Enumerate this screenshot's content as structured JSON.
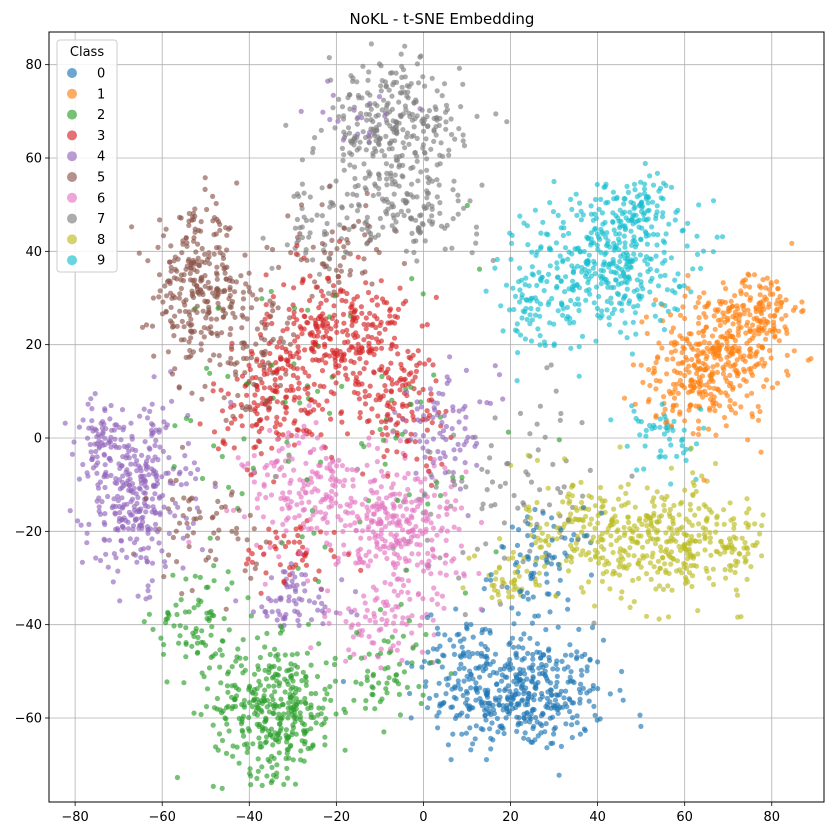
{
  "chart_data": {
    "type": "scatter",
    "title": "NoKL - t-SNE Embedding",
    "xlabel": "",
    "ylabel": "",
    "xlim": [
      -86,
      92
    ],
    "ylim": [
      -78,
      87
    ],
    "xticks": [
      -80,
      -60,
      -40,
      -20,
      0,
      20,
      40,
      60,
      80
    ],
    "yticks": [
      -60,
      -40,
      -20,
      0,
      20,
      40,
      60,
      80
    ],
    "grid": true,
    "legend": {
      "title": "Class",
      "position": "upper-left"
    },
    "series": [
      {
        "name": "0",
        "color": "#1f77b4",
        "clusters": [
          {
            "cx": 22,
            "cy": -55,
            "sx": 10,
            "sy": 6,
            "n": 420
          },
          {
            "cx": 28,
            "cy": -28,
            "sx": 6,
            "sy": 6,
            "n": 80
          },
          {
            "cx": 10,
            "cy": -45,
            "sx": 5,
            "sy": 4,
            "n": 60
          }
        ]
      },
      {
        "name": "1",
        "color": "#ff7f0e",
        "clusters": [
          {
            "cx": 68,
            "cy": 18,
            "sx": 7,
            "sy": 7,
            "n": 320
          },
          {
            "cx": 78,
            "cy": 28,
            "sx": 4,
            "sy": 4,
            "n": 100
          },
          {
            "cx": 60,
            "cy": 10,
            "sx": 5,
            "sy": 5,
            "n": 80
          }
        ]
      },
      {
        "name": "2",
        "color": "#2ca02c",
        "clusters": [
          {
            "cx": -34,
            "cy": -58,
            "sx": 7,
            "sy": 7,
            "n": 360
          },
          {
            "cx": -52,
            "cy": -40,
            "sx": 5,
            "sy": 7,
            "n": 80
          },
          {
            "cx": -8,
            "cy": -50,
            "sx": 5,
            "sy": 6,
            "n": 60
          },
          {
            "cx": -20,
            "cy": 0,
            "sx": 20,
            "sy": 20,
            "n": 90
          }
        ]
      },
      {
        "name": "3",
        "color": "#d62728",
        "clusters": [
          {
            "cx": -20,
            "cy": 22,
            "sx": 8,
            "sy": 7,
            "n": 300
          },
          {
            "cx": -35,
            "cy": 8,
            "sx": 7,
            "sy": 6,
            "n": 150
          },
          {
            "cx": -5,
            "cy": 8,
            "sx": 6,
            "sy": 7,
            "n": 120
          },
          {
            "cx": -30,
            "cy": -25,
            "sx": 6,
            "sy": 4,
            "n": 50
          }
        ]
      },
      {
        "name": "4",
        "color": "#9467bd",
        "clusters": [
          {
            "cx": -66,
            "cy": -12,
            "sx": 6,
            "sy": 9,
            "n": 320
          },
          {
            "cx": -74,
            "cy": 0,
            "sx": 3,
            "sy": 4,
            "n": 60
          },
          {
            "cx": -30,
            "cy": -35,
            "sx": 6,
            "sy": 4,
            "n": 70
          },
          {
            "cx": 5,
            "cy": 2,
            "sx": 6,
            "sy": 6,
            "n": 80
          },
          {
            "cx": -15,
            "cy": 70,
            "sx": 6,
            "sy": 3,
            "n": 20
          }
        ]
      },
      {
        "name": "5",
        "color": "#8c564b",
        "clusters": [
          {
            "cx": -52,
            "cy": 32,
            "sx": 5,
            "sy": 8,
            "n": 260
          },
          {
            "cx": -40,
            "cy": 20,
            "sx": 6,
            "sy": 8,
            "n": 100
          },
          {
            "cx": -20,
            "cy": 40,
            "sx": 6,
            "sy": 5,
            "n": 60
          },
          {
            "cx": -50,
            "cy": -20,
            "sx": 6,
            "sy": 6,
            "n": 60
          }
        ]
      },
      {
        "name": "6",
        "color": "#e377c2",
        "clusters": [
          {
            "cx": -5,
            "cy": -20,
            "sx": 7,
            "sy": 8,
            "n": 280
          },
          {
            "cx": -25,
            "cy": -12,
            "sx": 8,
            "sy": 7,
            "n": 200
          },
          {
            "cx": -10,
            "cy": -40,
            "sx": 6,
            "sy": 4,
            "n": 60
          }
        ]
      },
      {
        "name": "7",
        "color": "#7f7f7f",
        "clusters": [
          {
            "cx": -7,
            "cy": 65,
            "sx": 8,
            "sy": 8,
            "n": 330
          },
          {
            "cx": -5,
            "cy": 48,
            "sx": 9,
            "sy": 4,
            "n": 110
          },
          {
            "cx": 20,
            "cy": -10,
            "sx": 12,
            "sy": 10,
            "n": 90
          },
          {
            "cx": -25,
            "cy": 45,
            "sx": 5,
            "sy": 5,
            "n": 40
          }
        ]
      },
      {
        "name": "8",
        "color": "#bcbd22",
        "clusters": [
          {
            "cx": 55,
            "cy": -22,
            "sx": 9,
            "sy": 6,
            "n": 320
          },
          {
            "cx": 35,
            "cy": -20,
            "sx": 6,
            "sy": 7,
            "n": 120
          },
          {
            "cx": 72,
            "cy": -23,
            "sx": 3,
            "sy": 3,
            "n": 40
          },
          {
            "cx": 20,
            "cy": -30,
            "sx": 4,
            "sy": 4,
            "n": 40
          }
        ]
      },
      {
        "name": "9",
        "color": "#17becf",
        "clusters": [
          {
            "cx": 42,
            "cy": 38,
            "sx": 9,
            "sy": 7,
            "n": 380
          },
          {
            "cx": 50,
            "cy": 50,
            "sx": 5,
            "sy": 3,
            "n": 80
          },
          {
            "cx": 25,
            "cy": 28,
            "sx": 5,
            "sy": 5,
            "n": 70
          },
          {
            "cx": 55,
            "cy": 0,
            "sx": 5,
            "sy": 5,
            "n": 50
          }
        ]
      }
    ]
  }
}
